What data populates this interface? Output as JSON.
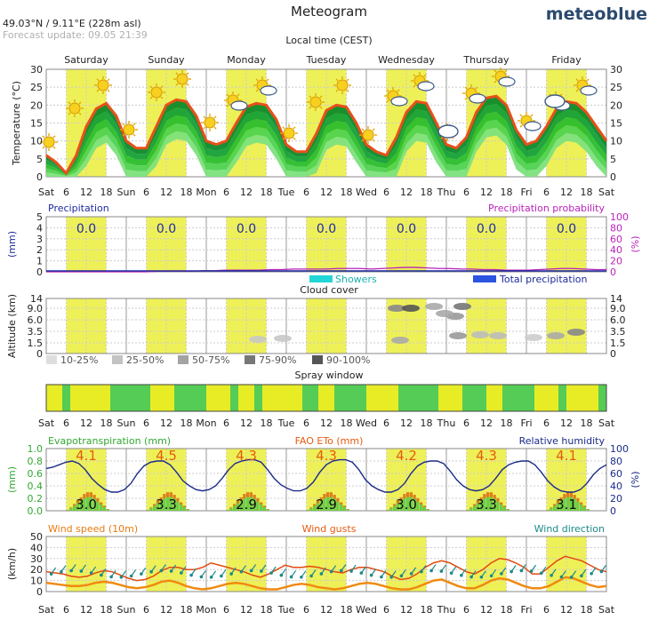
{
  "header": {
    "title": "Meteogram",
    "location": "49.03°N / 9.11°E (228m asl)",
    "update": "Forecast update: 09.05 21:39",
    "brand": "meteoblue",
    "subtitle": "Local time (CEST)"
  },
  "colors": {
    "day": "#eef058",
    "temp_line": "#e8501a",
    "brand": "#2b4a6e",
    "precip_prob": "#bb22bb",
    "precip_label": "#1f2aa0",
    "evapo": "#33a833",
    "eto": "#e85b10",
    "humidity": "#1a2a8a",
    "wind_speed": "#e87a10",
    "wind_dir": "#1c8a8a",
    "spray_good": "#55cc55",
    "spray_ok": "#e7ec25"
  },
  "chart_data": [
    {
      "type": "line",
      "panel": "temperature",
      "ylabel": "Temperature (°C)",
      "ylim": [
        0,
        30
      ],
      "yticks": [
        0,
        5,
        10,
        15,
        20,
        25,
        30
      ],
      "days": [
        "Saturday",
        "Sunday",
        "Monday",
        "Tuesday",
        "Wednesday",
        "Thursday",
        "Friday"
      ],
      "x_tick_labels": [
        "Sat",
        "6",
        "12",
        "18",
        "Sun",
        "6",
        "12",
        "18",
        "Mon",
        "6",
        "12",
        "18",
        "Tue",
        "6",
        "12",
        "18",
        "Wed",
        "6",
        "12",
        "18",
        "Thu",
        "6",
        "12",
        "18",
        "Fri",
        "6",
        "12",
        "18",
        "Sat"
      ],
      "series": [
        {
          "x_hours": [
            0,
            3,
            6,
            9,
            12,
            15,
            18,
            21,
            24,
            27,
            30,
            33,
            36,
            39,
            42,
            45,
            48,
            51,
            54,
            57,
            60,
            63,
            66,
            69,
            72,
            75,
            78,
            81,
            84,
            87,
            90,
            93,
            96,
            99,
            102,
            105,
            108,
            111,
            114,
            117,
            120,
            123,
            126,
            129,
            132,
            135,
            138,
            141,
            144,
            147,
            150,
            153,
            156,
            159,
            162,
            165,
            168
          ],
          "values": [
            6,
            4,
            1,
            6,
            14,
            19,
            20.5,
            17,
            10,
            8,
            8,
            14,
            20,
            21.5,
            21,
            17,
            10,
            9,
            10,
            15,
            19.5,
            20.5,
            20,
            16,
            9,
            7,
            7,
            12,
            18.5,
            20,
            19.5,
            15,
            9,
            7,
            6,
            11,
            18,
            21,
            20.5,
            15,
            9,
            8,
            11,
            18,
            22,
            22.5,
            20,
            13,
            9,
            10,
            14,
            19,
            21,
            20.5,
            18,
            14,
            10
          ]
        }
      ]
    },
    {
      "type": "bar",
      "panel": "precipitation",
      "title_left": "Precipitation",
      "title_right": "Precipitation probability",
      "ylabel_left": "(mm)",
      "ylabel_right": "(%)",
      "ylim_left": [
        0,
        5
      ],
      "yticks_left": [
        0,
        1,
        2,
        3,
        4,
        5
      ],
      "ylim_right": [
        0,
        100
      ],
      "yticks_right": [
        0,
        20,
        40,
        60,
        80,
        100
      ],
      "daily_totals": [
        "0.0",
        "0.0",
        "0.0",
        "0.0",
        "0.0",
        "0.0",
        "0.0"
      ],
      "probability_values": [
        0,
        0,
        0,
        0,
        0,
        0,
        0,
        0,
        0,
        0,
        1,
        1,
        1,
        1,
        2,
        2,
        3,
        3,
        3,
        3,
        4,
        4,
        5,
        5,
        5,
        5,
        6,
        6,
        6,
        5,
        6,
        7,
        8,
        8,
        7,
        6,
        6,
        5,
        5,
        4,
        4,
        3,
        3,
        3,
        4,
        5,
        6,
        6,
        5,
        4,
        4
      ],
      "legend": [
        "Showers",
        "Total precipitation"
      ]
    },
    {
      "type": "heatmap",
      "panel": "cloud_cover",
      "title": "Cloud cover",
      "ylabel": "Altitude (km)",
      "yticks": [
        "0",
        "1.5",
        "3.5",
        "6.0",
        "9.0",
        "14"
      ],
      "legend": [
        "10-25%",
        "25-50%",
        "50-75%",
        "75-90%",
        "90-100%"
      ]
    },
    {
      "type": "heatmap",
      "panel": "spray_window",
      "title": "Spray window",
      "cells": [
        "y",
        "y",
        "g",
        "y",
        "y",
        "y",
        "y",
        "y",
        "g",
        "g",
        "g",
        "g",
        "g",
        "y",
        "y",
        "y",
        "g",
        "g",
        "g",
        "g",
        "y",
        "y",
        "y",
        "g",
        "y",
        "y",
        "g",
        "y",
        "y",
        "y",
        "y",
        "y",
        "g",
        "g",
        "y",
        "y",
        "g",
        "g",
        "g",
        "g",
        "y",
        "y",
        "y",
        "y",
        "g",
        "g",
        "g",
        "g",
        "g",
        "y",
        "y",
        "y",
        "g",
        "g",
        "g",
        "y",
        "y",
        "g",
        "g",
        "g",
        "g",
        "y",
        "y",
        "y",
        "g",
        "y",
        "y",
        "y",
        "y",
        "g"
      ]
    },
    {
      "type": "bar",
      "panel": "evapotranspiration",
      "title_left": "Evapotranspiration (mm)",
      "title_mid": "FAO ETo (mm)",
      "title_right": "Relative humidity",
      "ylabel_left": "(mm)",
      "ylabel_right": "(%)",
      "yticks_left": [
        "0.0",
        "0.2",
        "0.4",
        "0.6",
        "0.8",
        "1.0"
      ],
      "yticks_right": [
        "0",
        "20",
        "40",
        "60",
        "80",
        "100"
      ],
      "eto_totals": [
        "4.1",
        "4.5",
        "4.3",
        "4.3",
        "4.2",
        "4.3",
        "4.1"
      ],
      "evapo_totals": [
        "3.0",
        "3.3",
        "2.9",
        "2.9",
        "3.0",
        "3.3",
        "3.1"
      ],
      "humidity_values": [
        68,
        70,
        74,
        78,
        80,
        76,
        66,
        52,
        42,
        34,
        30,
        30,
        34,
        44,
        60,
        72,
        78,
        80,
        80,
        74,
        62,
        48,
        40,
        34,
        32,
        34,
        40,
        52,
        66,
        76,
        80,
        82,
        82,
        78,
        66,
        52,
        42,
        36,
        32,
        32,
        36,
        46,
        62,
        74,
        80,
        82,
        82,
        78,
        66,
        50,
        40,
        34,
        30,
        30,
        34,
        44,
        60,
        72,
        78,
        80,
        80,
        76,
        64,
        50,
        40,
        34,
        32,
        34,
        40,
        52,
        66,
        74,
        78,
        80,
        80,
        74,
        62,
        48,
        38,
        32,
        30,
        30,
        34,
        44,
        58,
        68,
        74
      ],
      "evapo_daily_values": [
        0.01,
        0.04,
        0.08,
        0.12,
        0.16,
        0.2,
        0.22,
        0.22,
        0.19,
        0.15,
        0.1,
        0.06,
        0.02
      ]
    },
    {
      "type": "line",
      "panel": "wind",
      "title_left": "Wind speed (10m)",
      "title_mid": "Wind gusts",
      "title_right": "Wind direction",
      "ylabel": "(km/h)",
      "ylim": [
        0,
        50
      ],
      "yticks": [
        0,
        10,
        20,
        30,
        40,
        50
      ],
      "series": [
        {
          "name": "Wind speed (10m)",
          "values": [
            8,
            7,
            6,
            5,
            5,
            6,
            8,
            9,
            8,
            6,
            4,
            3,
            4,
            6,
            9,
            10,
            8,
            5,
            3,
            2,
            3,
            5,
            7,
            8,
            7,
            5,
            3,
            2,
            2,
            4,
            6,
            7,
            6,
            4,
            3,
            2,
            3,
            5,
            7,
            8,
            7,
            5,
            3,
            2,
            2,
            4,
            7,
            10,
            11,
            8,
            5,
            3,
            3,
            6,
            10,
            12,
            11,
            8,
            5,
            3,
            3,
            5,
            9,
            13,
            12,
            9,
            6,
            4,
            5
          ]
        },
        {
          "name": "Wind gusts",
          "values": [
            18,
            17,
            16,
            14,
            13,
            14,
            17,
            19,
            18,
            15,
            12,
            10,
            11,
            14,
            19,
            22,
            22,
            20,
            20,
            22,
            26,
            24,
            22,
            20,
            18,
            15,
            13,
            16,
            20,
            24,
            22,
            22,
            23,
            22,
            20,
            18,
            17,
            20,
            22,
            22,
            20,
            18,
            14,
            11,
            12,
            16,
            22,
            26,
            28,
            26,
            22,
            18,
            16,
            20,
            26,
            30,
            29,
            26,
            22,
            16,
            16,
            22,
            28,
            32,
            30,
            28,
            24,
            20,
            18
          ]
        }
      ]
    }
  ]
}
